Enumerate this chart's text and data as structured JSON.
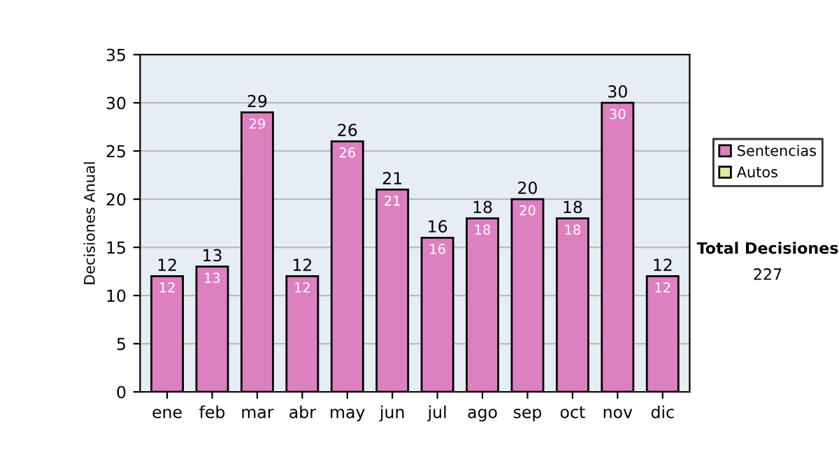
{
  "chart_data": {
    "type": "bar",
    "ylabel": "Decisiones Anual",
    "categories": [
      "ene",
      "feb",
      "mar",
      "abr",
      "may",
      "jun",
      "jul",
      "ago",
      "sep",
      "oct",
      "nov",
      "dic"
    ],
    "series": [
      {
        "name": "Sentencias",
        "color": "#dd80c0",
        "values": [
          12,
          13,
          29,
          12,
          26,
          21,
          16,
          18,
          20,
          18,
          30,
          12
        ],
        "value_labels": [
          "12",
          "13",
          "29",
          "12",
          "26",
          "21",
          "16",
          "18",
          "20",
          "18",
          "30",
          "12"
        ]
      },
      {
        "name": "Autos",
        "color": "#d8ee9c",
        "values": [
          null,
          null,
          null,
          null,
          null,
          null,
          null,
          null,
          null,
          null,
          null,
          null
        ]
      }
    ],
    "totals": [
      "12",
      "13",
      "29",
      "12",
      "26",
      "21",
      "16",
      "18",
      "20",
      "18",
      "30",
      "12"
    ],
    "ylim": [
      0,
      35
    ],
    "yticks": [
      0,
      5,
      10,
      15,
      20,
      25,
      30,
      35
    ],
    "grid": "y",
    "legend": "right",
    "annotations": [
      "Total Decisiones",
      "227"
    ]
  }
}
